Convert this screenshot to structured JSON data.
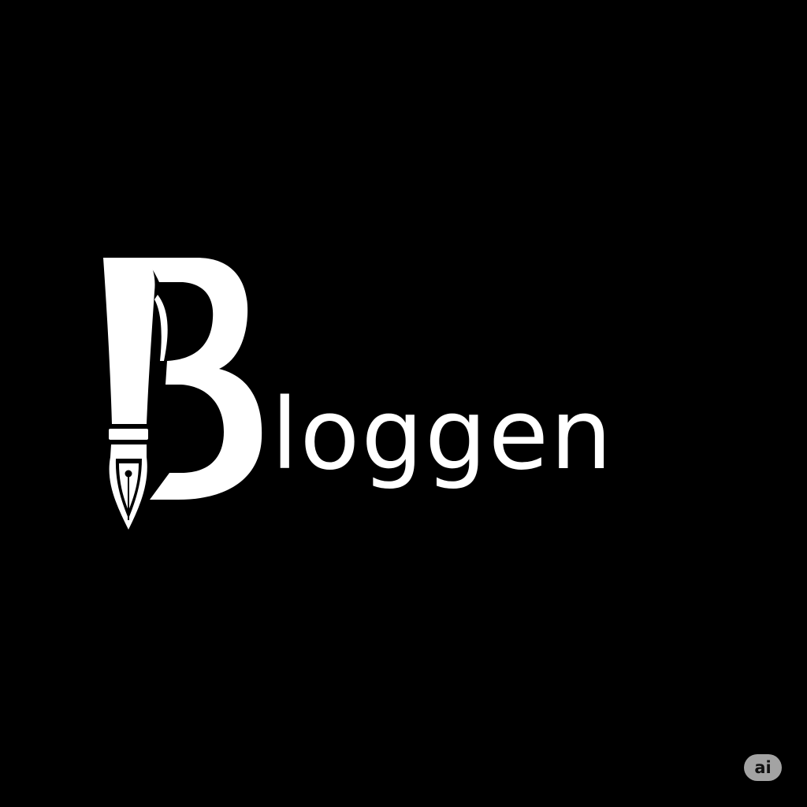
{
  "logo": {
    "monogram_letter": "B",
    "wordmark_rest": "loggen",
    "full_name": "Bloggen",
    "emblem_icon": "fountain-pen-nib-icon"
  },
  "badge": {
    "label": "ai"
  },
  "colors": {
    "background": "#000000",
    "foreground": "#ffffff",
    "badge_background": "#a3a3a3",
    "badge_text": "#111111"
  }
}
